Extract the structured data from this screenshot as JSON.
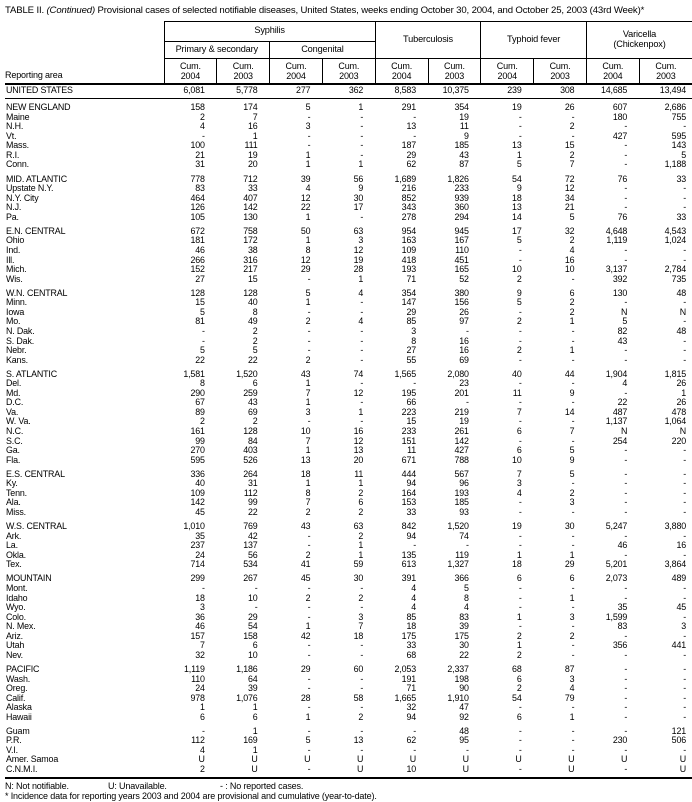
{
  "title": {
    "label": "TABLE II.",
    "continued": "(Continued)",
    "rest": "Provisional cases of selected notifiable diseases, United States, weeks ending October 30, 2004, and October 25, 2003 (43rd Week)*"
  },
  "header": {
    "reporting_area": "Reporting area",
    "syphilis": "Syphilis",
    "primary_secondary": "Primary & secondary",
    "congenital": "Congenital",
    "tuberculosis": "Tuberculosis",
    "typhoid_fever": "Typhoid fever",
    "varicella_line1": "Varicella",
    "varicella_line2": "(Chickenpox)",
    "cum": "Cum.",
    "years": [
      "2004",
      "2003"
    ]
  },
  "groups": [
    {
      "rows": [
        {
          "area": "UNITED STATES",
          "values": [
            "6,081",
            "5,778",
            "277",
            "362",
            "8,583",
            "10,375",
            "239",
            "308",
            "14,685",
            "13,494"
          ]
        }
      ]
    },
    {
      "rows": [
        {
          "area": "NEW ENGLAND",
          "values": [
            "158",
            "174",
            "5",
            "1",
            "291",
            "354",
            "19",
            "26",
            "607",
            "2,686"
          ]
        },
        {
          "area": "Maine",
          "values": [
            "2",
            "7",
            "-",
            "-",
            "-",
            "19",
            "-",
            "-",
            "180",
            "755"
          ]
        },
        {
          "area": "N.H.",
          "values": [
            "4",
            "16",
            "3",
            "-",
            "13",
            "11",
            "-",
            "2",
            "-",
            "-"
          ]
        },
        {
          "area": "Vt.",
          "values": [
            "-",
            "1",
            "-",
            "-",
            "-",
            "9",
            "-",
            "-",
            "427",
            "595"
          ]
        },
        {
          "area": "Mass.",
          "values": [
            "100",
            "111",
            "-",
            "-",
            "187",
            "185",
            "13",
            "15",
            "-",
            "143"
          ]
        },
        {
          "area": "R.I.",
          "values": [
            "21",
            "19",
            "1",
            "-",
            "29",
            "43",
            "1",
            "2",
            "-",
            "5"
          ]
        },
        {
          "area": "Conn.",
          "values": [
            "31",
            "20",
            "1",
            "1",
            "62",
            "87",
            "5",
            "7",
            "-",
            "1,188"
          ]
        }
      ]
    },
    {
      "rows": [
        {
          "area": "MID. ATLANTIC",
          "values": [
            "778",
            "712",
            "39",
            "56",
            "1,689",
            "1,826",
            "54",
            "72",
            "76",
            "33"
          ]
        },
        {
          "area": "Upstate N.Y.",
          "values": [
            "83",
            "33",
            "4",
            "9",
            "216",
            "233",
            "9",
            "12",
            "-",
            "-"
          ]
        },
        {
          "area": "N.Y. City",
          "values": [
            "464",
            "407",
            "12",
            "30",
            "852",
            "939",
            "18",
            "34",
            "-",
            "-"
          ]
        },
        {
          "area": "N.J.",
          "values": [
            "126",
            "142",
            "22",
            "17",
            "343",
            "360",
            "13",
            "21",
            "-",
            "-"
          ]
        },
        {
          "area": "Pa.",
          "values": [
            "105",
            "130",
            "1",
            "-",
            "278",
            "294",
            "14",
            "5",
            "76",
            "33"
          ]
        }
      ]
    },
    {
      "rows": [
        {
          "area": "E.N. CENTRAL",
          "values": [
            "672",
            "758",
            "50",
            "63",
            "954",
            "945",
            "17",
            "32",
            "4,648",
            "4,543"
          ]
        },
        {
          "area": "Ohio",
          "values": [
            "181",
            "172",
            "1",
            "3",
            "163",
            "167",
            "5",
            "2",
            "1,119",
            "1,024"
          ]
        },
        {
          "area": "Ind.",
          "values": [
            "46",
            "38",
            "8",
            "12",
            "109",
            "110",
            "-",
            "4",
            "-",
            "-"
          ]
        },
        {
          "area": "Ill.",
          "values": [
            "266",
            "316",
            "12",
            "19",
            "418",
            "451",
            "-",
            "16",
            "-",
            "-"
          ]
        },
        {
          "area": "Mich.",
          "values": [
            "152",
            "217",
            "29",
            "28",
            "193",
            "165",
            "10",
            "10",
            "3,137",
            "2,784"
          ]
        },
        {
          "area": "Wis.",
          "values": [
            "27",
            "15",
            "-",
            "1",
            "71",
            "52",
            "2",
            "-",
            "392",
            "735"
          ]
        }
      ]
    },
    {
      "rows": [
        {
          "area": "W.N. CENTRAL",
          "values": [
            "128",
            "128",
            "5",
            "4",
            "354",
            "380",
            "9",
            "6",
            "130",
            "48"
          ]
        },
        {
          "area": "Minn.",
          "values": [
            "15",
            "40",
            "1",
            "-",
            "147",
            "156",
            "5",
            "2",
            "-",
            "-"
          ]
        },
        {
          "area": "Iowa",
          "values": [
            "5",
            "8",
            "-",
            "-",
            "29",
            "26",
            "-",
            "2",
            "N",
            "N"
          ]
        },
        {
          "area": "Mo.",
          "values": [
            "81",
            "49",
            "2",
            "4",
            "85",
            "97",
            "2",
            "1",
            "5",
            "-"
          ]
        },
        {
          "area": "N. Dak.",
          "values": [
            "-",
            "2",
            "-",
            "-",
            "3",
            "-",
            "-",
            "-",
            "82",
            "48"
          ]
        },
        {
          "area": "S. Dak.",
          "values": [
            "-",
            "2",
            "-",
            "-",
            "8",
            "16",
            "-",
            "-",
            "43",
            "-"
          ]
        },
        {
          "area": "Nebr.",
          "values": [
            "5",
            "5",
            "-",
            "-",
            "27",
            "16",
            "2",
            "1",
            "-",
            "-"
          ]
        },
        {
          "area": "Kans.",
          "values": [
            "22",
            "22",
            "2",
            "-",
            "55",
            "69",
            "-",
            "-",
            "-",
            "-"
          ]
        }
      ]
    },
    {
      "rows": [
        {
          "area": "S. ATLANTIC",
          "values": [
            "1,581",
            "1,520",
            "43",
            "74",
            "1,565",
            "2,080",
            "40",
            "44",
            "1,904",
            "1,815"
          ]
        },
        {
          "area": "Del.",
          "values": [
            "8",
            "6",
            "1",
            "-",
            "-",
            "23",
            "-",
            "-",
            "4",
            "26"
          ]
        },
        {
          "area": "Md.",
          "values": [
            "290",
            "259",
            "7",
            "12",
            "195",
            "201",
            "11",
            "9",
            "-",
            "1"
          ]
        },
        {
          "area": "D.C.",
          "values": [
            "67",
            "43",
            "1",
            "-",
            "66",
            "-",
            "-",
            "-",
            "22",
            "26"
          ]
        },
        {
          "area": "Va.",
          "values": [
            "89",
            "69",
            "3",
            "1",
            "223",
            "219",
            "7",
            "14",
            "487",
            "478"
          ]
        },
        {
          "area": "W. Va.",
          "values": [
            "2",
            "2",
            "-",
            "-",
            "15",
            "19",
            "-",
            "-",
            "1,137",
            "1,064"
          ]
        },
        {
          "area": "N.C.",
          "values": [
            "161",
            "128",
            "10",
            "16",
            "233",
            "261",
            "6",
            "7",
            "N",
            "N"
          ]
        },
        {
          "area": "S.C.",
          "values": [
            "99",
            "84",
            "7",
            "12",
            "151",
            "142",
            "-",
            "-",
            "254",
            "220"
          ]
        },
        {
          "area": "Ga.",
          "values": [
            "270",
            "403",
            "1",
            "13",
            "11",
            "427",
            "6",
            "5",
            "-",
            "-"
          ]
        },
        {
          "area": "Fla.",
          "values": [
            "595",
            "526",
            "13",
            "20",
            "671",
            "788",
            "10",
            "9",
            "-",
            "-"
          ]
        }
      ]
    },
    {
      "rows": [
        {
          "area": "E.S. CENTRAL",
          "values": [
            "336",
            "264",
            "18",
            "11",
            "444",
            "567",
            "7",
            "5",
            "-",
            "-"
          ]
        },
        {
          "area": "Ky.",
          "values": [
            "40",
            "31",
            "1",
            "1",
            "94",
            "96",
            "3",
            "-",
            "-",
            "-"
          ]
        },
        {
          "area": "Tenn.",
          "values": [
            "109",
            "112",
            "8",
            "2",
            "164",
            "193",
            "4",
            "2",
            "-",
            "-"
          ]
        },
        {
          "area": "Ala.",
          "values": [
            "142",
            "99",
            "7",
            "6",
            "153",
            "185",
            "-",
            "3",
            "-",
            "-"
          ]
        },
        {
          "area": "Miss.",
          "values": [
            "45",
            "22",
            "2",
            "2",
            "33",
            "93",
            "-",
            "-",
            "-",
            "-"
          ]
        }
      ]
    },
    {
      "rows": [
        {
          "area": "W.S. CENTRAL",
          "values": [
            "1,010",
            "769",
            "43",
            "63",
            "842",
            "1,520",
            "19",
            "30",
            "5,247",
            "3,880"
          ]
        },
        {
          "area": "Ark.",
          "values": [
            "35",
            "42",
            "-",
            "2",
            "94",
            "74",
            "-",
            "-",
            "-",
            "-"
          ]
        },
        {
          "area": "La.",
          "values": [
            "237",
            "137",
            "-",
            "1",
            "-",
            "-",
            "-",
            "-",
            "46",
            "16"
          ]
        },
        {
          "area": "Okla.",
          "values": [
            "24",
            "56",
            "2",
            "1",
            "135",
            "119",
            "1",
            "1",
            "-",
            "-"
          ]
        },
        {
          "area": "Tex.",
          "values": [
            "714",
            "534",
            "41",
            "59",
            "613",
            "1,327",
            "18",
            "29",
            "5,201",
            "3,864"
          ]
        }
      ]
    },
    {
      "rows": [
        {
          "area": "MOUNTAIN",
          "values": [
            "299",
            "267",
            "45",
            "30",
            "391",
            "366",
            "6",
            "6",
            "2,073",
            "489"
          ]
        },
        {
          "area": "Mont.",
          "values": [
            "-",
            "-",
            "-",
            "-",
            "4",
            "5",
            "-",
            "-",
            "-",
            "-"
          ]
        },
        {
          "area": "Idaho",
          "values": [
            "18",
            "10",
            "2",
            "2",
            "4",
            "8",
            "-",
            "1",
            "-",
            "-"
          ]
        },
        {
          "area": "Wyo.",
          "values": [
            "3",
            "-",
            "-",
            "-",
            "4",
            "4",
            "-",
            "-",
            "35",
            "45"
          ]
        },
        {
          "area": "Colo.",
          "values": [
            "36",
            "29",
            "-",
            "3",
            "85",
            "83",
            "1",
            "3",
            "1,599",
            "-"
          ]
        },
        {
          "area": "N. Mex.",
          "values": [
            "46",
            "54",
            "1",
            "7",
            "18",
            "39",
            "-",
            "-",
            "83",
            "3"
          ]
        },
        {
          "area": "Ariz.",
          "values": [
            "157",
            "158",
            "42",
            "18",
            "175",
            "175",
            "2",
            "2",
            "-",
            "-"
          ]
        },
        {
          "area": "Utah",
          "values": [
            "7",
            "6",
            "-",
            "-",
            "33",
            "30",
            "1",
            "-",
            "356",
            "441"
          ]
        },
        {
          "area": "Nev.",
          "values": [
            "32",
            "10",
            "-",
            "-",
            "68",
            "22",
            "2",
            "-",
            "-",
            "-"
          ]
        }
      ]
    },
    {
      "rows": [
        {
          "area": "PACIFIC",
          "values": [
            "1,119",
            "1,186",
            "29",
            "60",
            "2,053",
            "2,337",
            "68",
            "87",
            "-",
            "-"
          ]
        },
        {
          "area": "Wash.",
          "values": [
            "110",
            "64",
            "-",
            "-",
            "191",
            "198",
            "6",
            "3",
            "-",
            "-"
          ]
        },
        {
          "area": "Oreg.",
          "values": [
            "24",
            "39",
            "-",
            "-",
            "71",
            "90",
            "2",
            "4",
            "-",
            "-"
          ]
        },
        {
          "area": "Calif.",
          "values": [
            "978",
            "1,076",
            "28",
            "58",
            "1,665",
            "1,910",
            "54",
            "79",
            "-",
            "-"
          ]
        },
        {
          "area": "Alaska",
          "values": [
            "1",
            "1",
            "-",
            "-",
            "32",
            "47",
            "-",
            "-",
            "-",
            "-"
          ]
        },
        {
          "area": "Hawaii",
          "values": [
            "6",
            "6",
            "1",
            "2",
            "94",
            "92",
            "6",
            "1",
            "-",
            "-"
          ]
        }
      ]
    },
    {
      "rows": [
        {
          "area": "Guam",
          "values": [
            "-",
            "1",
            "-",
            "-",
            "-",
            "48",
            "-",
            "-",
            "-",
            "121"
          ]
        },
        {
          "area": "P.R.",
          "values": [
            "112",
            "169",
            "5",
            "13",
            "62",
            "95",
            "-",
            "-",
            "230",
            "506"
          ]
        },
        {
          "area": "V.I.",
          "values": [
            "4",
            "1",
            "-",
            "-",
            "-",
            "-",
            "-",
            "-",
            "-",
            "-"
          ]
        },
        {
          "area": "Amer. Samoa",
          "values": [
            "U",
            "U",
            "U",
            "U",
            "U",
            "U",
            "U",
            "U",
            "U",
            "U"
          ]
        },
        {
          "area": "C.N.M.I.",
          "values": [
            "2",
            "U",
            "-",
            "U",
            "10",
            "U",
            "-",
            "U",
            "-",
            "U"
          ]
        }
      ]
    }
  ],
  "footnotes": {
    "not_notifiable": "N: Not notifiable.",
    "unavailable": "U: Unavailable.",
    "no_cases": "- : No reported cases.",
    "asterisk": "* Incidence data for reporting years 2003 and 2004 are provisional and cumulative (year-to-date)."
  }
}
